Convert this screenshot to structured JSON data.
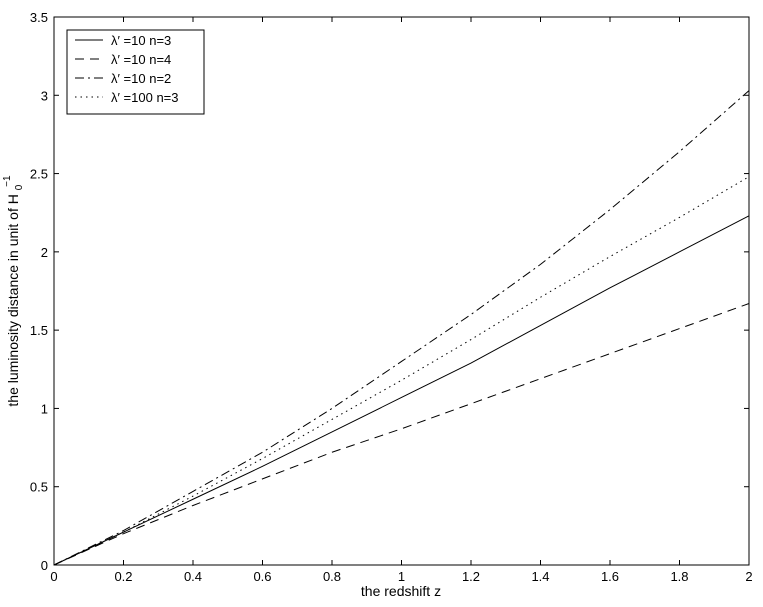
{
  "chart_data": {
    "type": "line",
    "title": "",
    "xlabel": "the redshift z",
    "ylabel": "the luminosity distance in unit of H",
    "ylabel_sub": "0",
    "ylabel_sup": "−1",
    "xlim": [
      0,
      2
    ],
    "ylim": [
      0,
      3.5
    ],
    "grid": false,
    "legend_position": "top-left",
    "x_ticks": [
      {
        "value": 0,
        "label": "0"
      },
      {
        "value": 0.2,
        "label": "0.2"
      },
      {
        "value": 0.4,
        "label": "0.4"
      },
      {
        "value": 0.6,
        "label": "0.6"
      },
      {
        "value": 0.8,
        "label": "0.8"
      },
      {
        "value": 1.0,
        "label": "1"
      },
      {
        "value": 1.2,
        "label": "1.2"
      },
      {
        "value": 1.4,
        "label": "1.4"
      },
      {
        "value": 1.6,
        "label": "1.6"
      },
      {
        "value": 1.8,
        "label": "1.8"
      },
      {
        "value": 2.0,
        "label": "2"
      }
    ],
    "y_ticks": [
      {
        "value": 0,
        "label": "0"
      },
      {
        "value": 0.5,
        "label": "0.5"
      },
      {
        "value": 1.0,
        "label": "1"
      },
      {
        "value": 1.5,
        "label": "1.5"
      },
      {
        "value": 2.0,
        "label": "2"
      },
      {
        "value": 2.5,
        "label": "2.5"
      },
      {
        "value": 3.0,
        "label": "3"
      },
      {
        "value": 3.5,
        "label": "3.5"
      }
    ],
    "x": [
      0,
      0.2,
      0.4,
      0.6,
      0.8,
      1.0,
      1.2,
      1.4,
      1.6,
      1.8,
      2.0
    ],
    "series": [
      {
        "name": "λ′ =10 n=3",
        "dash": "solid",
        "values": [
          0,
          0.21,
          0.42,
          0.63,
          0.85,
          1.07,
          1.29,
          1.53,
          1.77,
          2.0,
          2.23
        ]
      },
      {
        "name": "λ′ =10 n=4",
        "dash": "dashed",
        "values": [
          0,
          0.2,
          0.38,
          0.55,
          0.72,
          0.87,
          1.03,
          1.19,
          1.35,
          1.51,
          1.67
        ]
      },
      {
        "name": "λ′ =10 n=2",
        "dash": "dashdot",
        "values": [
          0,
          0.22,
          0.47,
          0.72,
          1.0,
          1.3,
          1.6,
          1.92,
          2.27,
          2.64,
          3.03
        ]
      },
      {
        "name": "λ′ =100 n=3",
        "dash": "dotted",
        "values": [
          0,
          0.21,
          0.44,
          0.68,
          0.93,
          1.18,
          1.44,
          1.71,
          1.97,
          2.22,
          2.48
        ]
      }
    ]
  }
}
